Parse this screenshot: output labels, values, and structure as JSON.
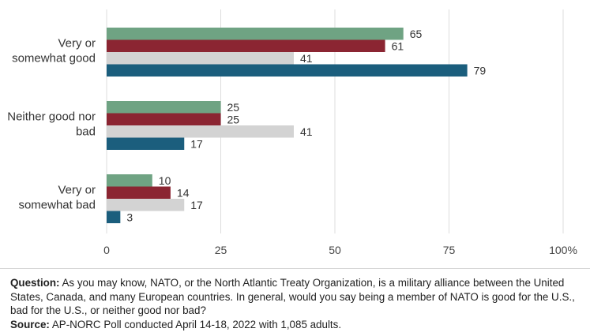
{
  "chart_data": {
    "type": "bar",
    "orientation": "horizontal",
    "categories": [
      "Very or somewhat good",
      "Neither good nor bad",
      "Very or somewhat bad"
    ],
    "category_lines": [
      [
        "Very or",
        "somewhat good"
      ],
      [
        "Neither good nor",
        "bad"
      ],
      [
        "Very or",
        "somewhat bad"
      ]
    ],
    "series": [
      {
        "color": "#6fa383",
        "values": [
          65,
          25,
          10
        ]
      },
      {
        "color": "#8b2532",
        "values": [
          61,
          25,
          14
        ]
      },
      {
        "color": "#d3d3d3",
        "values": [
          41,
          41,
          17
        ]
      },
      {
        "color": "#1b5e7d",
        "values": [
          79,
          17,
          3
        ]
      }
    ],
    "xlim": [
      0,
      100
    ],
    "xticks": [
      "0",
      "25",
      "50",
      "75",
      "100%"
    ],
    "xtick_values": [
      0,
      25,
      50,
      75,
      100
    ],
    "grid": true
  },
  "notes": {
    "question_label": "Question:",
    "question_text": "As you may know, NATO, or the North Atlantic Treaty Organization, is a military alliance between the United States, Canada, and many European countries. In general, would you say being a member of NATO is good for the U.S., bad for the U.S., or neither good nor bad?",
    "source_label": "Source:",
    "source_text": "AP-NORC Poll conducted April 14-18, 2022 with 1,085 adults."
  }
}
